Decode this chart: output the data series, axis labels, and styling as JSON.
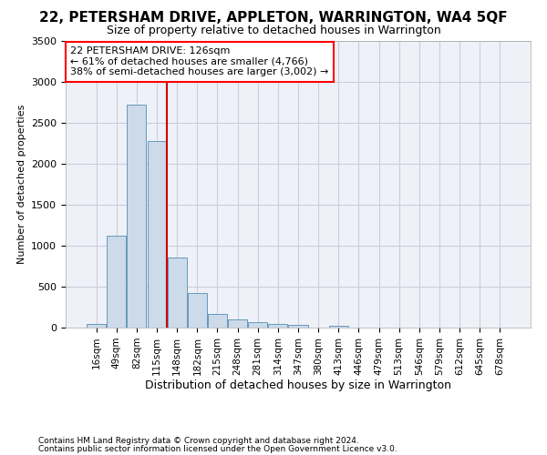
{
  "title1": "22, PETERSHAM DRIVE, APPLETON, WARRINGTON, WA4 5QF",
  "title2": "Size of property relative to detached houses in Warrington",
  "xlabel": "Distribution of detached houses by size in Warrington",
  "ylabel": "Number of detached properties",
  "footer1": "Contains HM Land Registry data © Crown copyright and database right 2024.",
  "footer2": "Contains public sector information licensed under the Open Government Licence v3.0.",
  "annotation_line1": "22 PETERSHAM DRIVE: 126sqm",
  "annotation_line2": "← 61% of detached houses are smaller (4,766)",
  "annotation_line3": "38% of semi-detached houses are larger (3,002) →",
  "bar_color": "#ccdaea",
  "bar_edge_color": "#6699bb",
  "grid_color": "#ccccdd",
  "bg_color": "#eef2f8",
  "red_line_color": "#cc0000",
  "categories": [
    "16sqm",
    "49sqm",
    "82sqm",
    "115sqm",
    "148sqm",
    "182sqm",
    "215sqm",
    "248sqm",
    "281sqm",
    "314sqm",
    "347sqm",
    "380sqm",
    "413sqm",
    "446sqm",
    "479sqm",
    "513sqm",
    "546sqm",
    "579sqm",
    "612sqm",
    "645sqm",
    "678sqm"
  ],
  "values": [
    50,
    1120,
    2720,
    2280,
    860,
    420,
    170,
    100,
    65,
    50,
    30,
    5,
    25,
    5,
    3,
    3,
    2,
    1,
    1,
    1,
    1
  ],
  "ylim": [
    0,
    3500
  ],
  "yticks": [
    0,
    500,
    1000,
    1500,
    2000,
    2500,
    3000,
    3500
  ],
  "red_line_bar_index": 3,
  "title1_fontsize": 11,
  "title2_fontsize": 9,
  "ylabel_fontsize": 8,
  "xlabel_fontsize": 9,
  "ytick_fontsize": 8,
  "xtick_fontsize": 7.5,
  "footer_fontsize": 6.5
}
